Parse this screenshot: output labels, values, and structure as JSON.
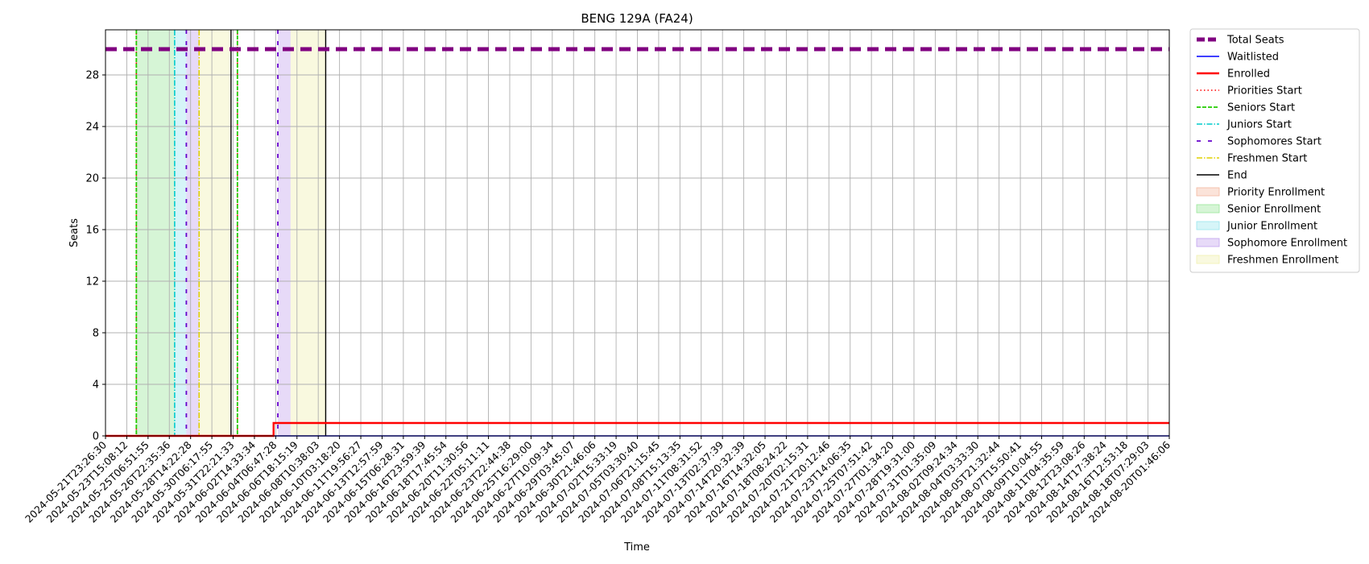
{
  "chart_data": {
    "type": "line",
    "title": "BENG 129A (FA24)",
    "xlabel": "Time",
    "ylabel": "Seats",
    "ylim": [
      0,
      31.5
    ],
    "yticks": [
      0,
      4,
      8,
      12,
      16,
      20,
      24,
      28
    ],
    "grid": true,
    "legend_position": "outside-top-right",
    "x_ticks": [
      "2024-05-21T23:26:30",
      "2024-05-23T15:08:12",
      "2024-05-25T06:51:55",
      "2024-05-26T22:35:36",
      "2024-05-28T14:22:28",
      "2024-05-30T06:17:55",
      "2024-05-31T22:21:33",
      "2024-06-02T14:33:34",
      "2024-06-04T06:47:28",
      "2024-06-06T18:15:19",
      "2024-06-08T10:38:03",
      "2024-06-10T03:18:20",
      "2024-06-11T19:56:27",
      "2024-06-13T12:57:59",
      "2024-06-15T06:28:31",
      "2024-06-16T23:59:39",
      "2024-06-18T17:45:54",
      "2024-06-20T11:30:56",
      "2024-06-22T05:11:11",
      "2024-06-23T22:44:38",
      "2024-06-25T16:29:00",
      "2024-06-27T10:09:34",
      "2024-06-29T03:45:07",
      "2024-06-30T21:46:06",
      "2024-07-02T15:33:19",
      "2024-07-05T03:30:40",
      "2024-07-06T21:15:45",
      "2024-07-08T15:13:35",
      "2024-07-11T08:31:52",
      "2024-07-13T02:37:39",
      "2024-07-14T20:32:39",
      "2024-07-16T14:32:05",
      "2024-07-18T08:24:22",
      "2024-07-20T02:15:31",
      "2024-07-21T20:12:46",
      "2024-07-23T14:06:35",
      "2024-07-25T07:51:42",
      "2024-07-27T01:34:20",
      "2024-07-28T19:31:00",
      "2024-07-31T01:35:09",
      "2024-08-02T09:24:34",
      "2024-08-04T03:33:30",
      "2024-08-05T21:32:44",
      "2024-08-07T15:50:41",
      "2024-08-09T10:04:55",
      "2024-08-11T04:35:59",
      "2024-08-12T23:08:26",
      "2024-08-14T17:38:24",
      "2024-08-16T12:53:18",
      "2024-08-18T07:29:03",
      "2024-08-20T01:46:06"
    ],
    "series": [
      {
        "name": "Total Seats",
        "color": "#800080",
        "style": "dashed-thick",
        "points": [
          [
            0,
            30
          ],
          [
            50,
            30
          ]
        ]
      },
      {
        "name": "Waitlisted",
        "color": "#0000ff",
        "style": "solid",
        "points": [
          [
            0,
            0
          ],
          [
            50,
            0
          ]
        ]
      },
      {
        "name": "Enrolled",
        "color": "#ff0000",
        "style": "solid-thick",
        "points": [
          [
            0,
            0
          ],
          [
            7.9,
            0
          ],
          [
            7.9,
            1
          ],
          [
            50,
            1
          ]
        ]
      }
    ],
    "markers": [
      {
        "name": "Priorities Start",
        "color": "#ff0000",
        "style": "dotted",
        "x": [
          1.45,
          6.2
        ]
      },
      {
        "name": "Seniors Start",
        "color": "#22cc00",
        "style": "dashed",
        "x": [
          1.45,
          6.2
        ]
      },
      {
        "name": "Juniors Start",
        "color": "#00cccc",
        "style": "dashdot",
        "x": [
          3.25
        ]
      },
      {
        "name": "Sophomores Start",
        "color": "#6600cc",
        "style": "loosedash",
        "x": [
          3.8,
          8.1
        ]
      },
      {
        "name": "Freshmen Start",
        "color": "#e0d000",
        "style": "dashdot",
        "x": [
          4.4
        ]
      },
      {
        "name": "End",
        "color": "#000000",
        "style": "solid",
        "x": [
          5.9,
          10.35
        ]
      }
    ],
    "regions": [
      {
        "name": "Priority Enrollment",
        "color": "#f4b8a0",
        "spans": []
      },
      {
        "name": "Senior Enrollment",
        "color": "#99e699",
        "spans": [
          [
            1.45,
            3.25
          ]
        ]
      },
      {
        "name": "Junior Enrollment",
        "color": "#99e6ee",
        "spans": [
          [
            3.25,
            3.8
          ]
        ]
      },
      {
        "name": "Sophomore Enrollment",
        "color": "#c2a3ee",
        "spans": [
          [
            3.8,
            4.4
          ],
          [
            8.1,
            8.7
          ]
        ]
      },
      {
        "name": "Freshmen Enrollment",
        "color": "#f0f0b0",
        "spans": [
          [
            4.4,
            5.9
          ],
          [
            8.7,
            10.35
          ]
        ]
      }
    ]
  }
}
